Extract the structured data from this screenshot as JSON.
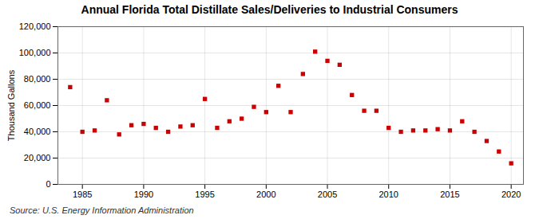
{
  "chart_data": {
    "type": "scatter",
    "title": "Annual Florida Total Distillate Sales/Deliveries to Industrial Consumers",
    "ylabel": "Thousand Gallons",
    "source": "Source: U.S. Energy Information Administration",
    "x": [
      1984,
      1985,
      1986,
      1987,
      1988,
      1989,
      1990,
      1991,
      1992,
      1993,
      1994,
      1995,
      1996,
      1997,
      1998,
      1999,
      2000,
      2001,
      2002,
      2003,
      2004,
      2005,
      2006,
      2007,
      2008,
      2009,
      2010,
      2011,
      2012,
      2013,
      2014,
      2015,
      2016,
      2017,
      2018,
      2019,
      2020
    ],
    "values": [
      74000,
      40000,
      41000,
      64000,
      38000,
      45000,
      46000,
      43000,
      40000,
      44000,
      45000,
      65000,
      43000,
      48000,
      50000,
      59000,
      55000,
      75000,
      55000,
      84000,
      101000,
      94000,
      91000,
      68000,
      56000,
      56000,
      43000,
      40000,
      41000,
      41000,
      42000,
      41000,
      48000,
      40000,
      33000,
      25000,
      16000
    ],
    "color": "#cc0000",
    "marker": "square",
    "xlim": [
      1983,
      2021
    ],
    "xticks": [
      1985,
      1990,
      1995,
      2000,
      2005,
      2010,
      2015,
      2020
    ],
    "ylim": [
      0,
      120000
    ],
    "yticks": [
      0,
      {
        "value": 20000,
        "label": "20,000"
      },
      {
        "value": 40000,
        "label": "40,000"
      },
      {
        "value": 60000,
        "label": "60,000"
      },
      {
        "value": 80000,
        "label": "80,000"
      },
      {
        "value": 100000,
        "label": "100,000"
      },
      {
        "value": 120000,
        "label": "120,000"
      }
    ],
    "grid": true
  }
}
